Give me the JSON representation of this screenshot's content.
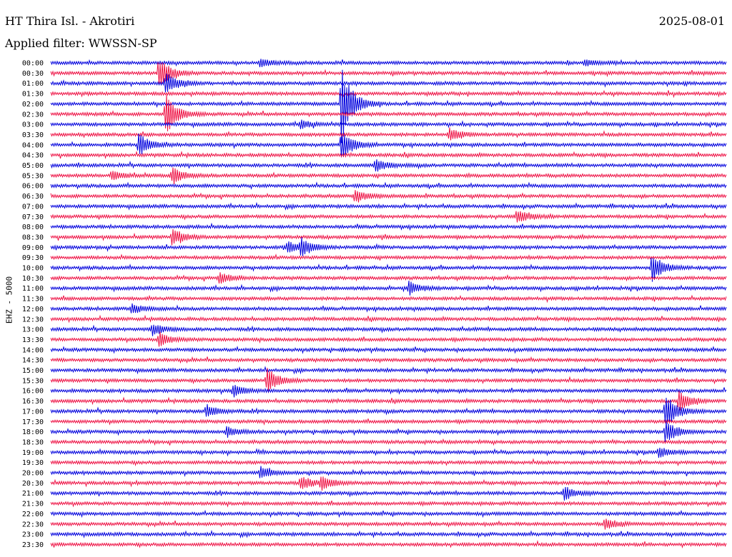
{
  "header": {
    "station": "HT Thira Isl. - Akrotiri",
    "date": "2025-08-01",
    "filter": "Applied filter: WWSSN-SP",
    "channel": "EHZ - 5000"
  },
  "chart_data": {
    "type": "line",
    "title": "HT Thira Isl. - Akrotiri",
    "subtitle": "Applied filter: WWSSN-SP",
    "ylabel": "EHZ - 5000",
    "grid": false,
    "rows": [
      "00:00",
      "00:30",
      "01:00",
      "01:30",
      "02:00",
      "02:30",
      "03:00",
      "03:30",
      "04:00",
      "04:30",
      "05:00",
      "05:30",
      "06:00",
      "06:30",
      "07:00",
      "07:30",
      "08:00",
      "08:30",
      "09:00",
      "09:30",
      "10:00",
      "10:30",
      "11:00",
      "11:30",
      "12:00",
      "12:30",
      "13:00",
      "13:30",
      "14:00",
      "14:30",
      "15:00",
      "15:30",
      "16:00",
      "16:30",
      "17:00",
      "17:30",
      "18:00",
      "18:30",
      "19:00",
      "19:30",
      "20:00",
      "20:30",
      "21:00",
      "21:30",
      "22:00",
      "22:30",
      "23:00",
      "23:30"
    ],
    "colors": [
      "#0000dd",
      "#ee1144"
    ],
    "events": [
      {
        "row": 0,
        "t": 0.31,
        "amp": 6
      },
      {
        "row": 0,
        "t": 0.79,
        "amp": 4
      },
      {
        "row": 1,
        "t": 0.16,
        "amp": 22
      },
      {
        "row": 2,
        "t": 0.17,
        "amp": 16
      },
      {
        "row": 4,
        "t": 0.43,
        "amp": 55
      },
      {
        "row": 5,
        "t": 0.17,
        "amp": 30
      },
      {
        "row": 6,
        "t": 0.37,
        "amp": 6
      },
      {
        "row": 7,
        "t": 0.59,
        "amp": 10
      },
      {
        "row": 8,
        "t": 0.13,
        "amp": 16
      },
      {
        "row": 8,
        "t": 0.43,
        "amp": 22
      },
      {
        "row": 10,
        "t": 0.48,
        "amp": 9
      },
      {
        "row": 11,
        "t": 0.18,
        "amp": 12
      },
      {
        "row": 11,
        "t": 0.09,
        "amp": 7
      },
      {
        "row": 13,
        "t": 0.45,
        "amp": 9
      },
      {
        "row": 15,
        "t": 0.69,
        "amp": 9
      },
      {
        "row": 17,
        "t": 0.18,
        "amp": 12
      },
      {
        "row": 18,
        "t": 0.37,
        "amp": 12
      },
      {
        "row": 18,
        "t": 0.35,
        "amp": 9
      },
      {
        "row": 20,
        "t": 0.89,
        "amp": 20
      },
      {
        "row": 21,
        "t": 0.25,
        "amp": 8
      },
      {
        "row": 22,
        "t": 0.53,
        "amp": 9
      },
      {
        "row": 24,
        "t": 0.12,
        "amp": 7
      },
      {
        "row": 26,
        "t": 0.15,
        "amp": 8
      },
      {
        "row": 27,
        "t": 0.16,
        "amp": 10
      },
      {
        "row": 31,
        "t": 0.32,
        "amp": 18
      },
      {
        "row": 32,
        "t": 0.27,
        "amp": 8
      },
      {
        "row": 33,
        "t": 0.93,
        "amp": 14
      },
      {
        "row": 34,
        "t": 0.91,
        "amp": 26
      },
      {
        "row": 34,
        "t": 0.23,
        "amp": 9
      },
      {
        "row": 36,
        "t": 0.91,
        "amp": 16
      },
      {
        "row": 36,
        "t": 0.26,
        "amp": 7
      },
      {
        "row": 38,
        "t": 0.9,
        "amp": 7
      },
      {
        "row": 40,
        "t": 0.31,
        "amp": 9
      },
      {
        "row": 41,
        "t": 0.37,
        "amp": 10
      },
      {
        "row": 41,
        "t": 0.4,
        "amp": 9
      },
      {
        "row": 42,
        "t": 0.76,
        "amp": 9
      },
      {
        "row": 45,
        "t": 0.82,
        "amp": 8
      }
    ]
  }
}
